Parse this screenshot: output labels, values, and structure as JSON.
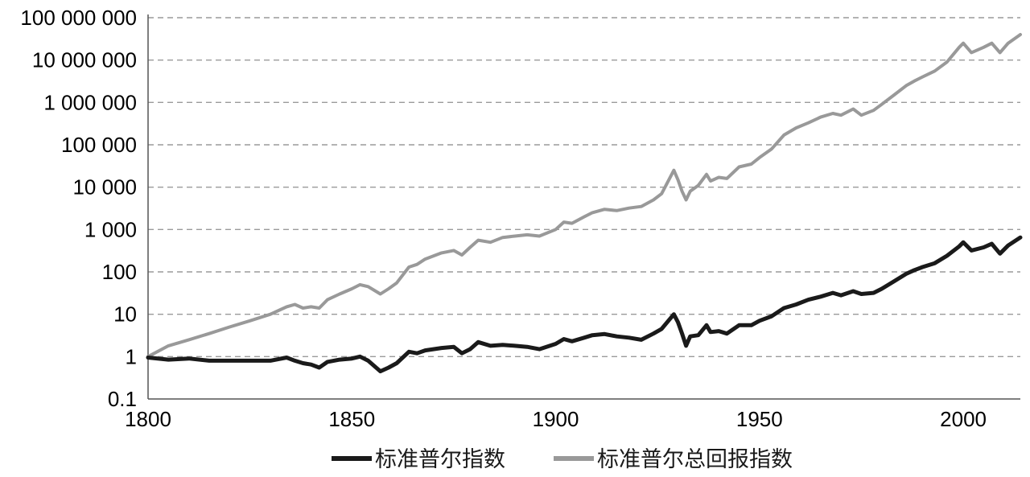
{
  "chart_data": {
    "type": "line",
    "title": "",
    "xlabel": "",
    "ylabel": "",
    "x_scale": "linear",
    "y_scale": "log",
    "xlim": [
      1800,
      2014
    ],
    "ylim": [
      0.1,
      100000000
    ],
    "x_ticks": [
      1800,
      1850,
      1900,
      1950,
      2000
    ],
    "x_tick_labels": [
      "1800",
      "1850",
      "1900",
      "1950",
      "2000"
    ],
    "y_ticks": [
      0.1,
      1,
      10,
      100,
      1000,
      10000,
      100000,
      1000000,
      10000000,
      100000000
    ],
    "y_tick_labels": [
      "0.1",
      "1",
      "10",
      "100",
      "1 000",
      "10 000",
      "100 000",
      "1 000 000",
      "10 000 000",
      "100 000 000"
    ],
    "grid": "horizontal dashed",
    "legend_position": "bottom",
    "series": [
      {
        "name": "标准普尔指数",
        "color": "#1a1a1a",
        "x": [
          1800,
          1805,
          1810,
          1815,
          1820,
          1825,
          1830,
          1834,
          1836,
          1838,
          1840,
          1842,
          1844,
          1847,
          1850,
          1852,
          1854,
          1857,
          1859,
          1861,
          1864,
          1866,
          1868,
          1872,
          1875,
          1877,
          1879,
          1881,
          1884,
          1887,
          1890,
          1893,
          1896,
          1900,
          1902,
          1904,
          1907,
          1909,
          1912,
          1915,
          1918,
          1921,
          1924,
          1926,
          1929,
          1930,
          1931,
          1932,
          1933,
          1935,
          1937,
          1938,
          1940,
          1942,
          1945,
          1948,
          1950,
          1953,
          1956,
          1959,
          1962,
          1965,
          1968,
          1970,
          1973,
          1975,
          1978,
          1980,
          1983,
          1986,
          1988,
          1990,
          1993,
          1996,
          1999,
          2000,
          2002,
          2005,
          2007,
          2009,
          2011,
          2014
        ],
        "y": [
          0.95,
          0.85,
          0.9,
          0.8,
          0.8,
          0.8,
          0.8,
          0.95,
          0.8,
          0.7,
          0.65,
          0.55,
          0.75,
          0.85,
          0.9,
          1.0,
          0.8,
          0.45,
          0.55,
          0.7,
          1.3,
          1.2,
          1.4,
          1.6,
          1.7,
          1.2,
          1.5,
          2.2,
          1.8,
          1.9,
          1.8,
          1.7,
          1.5,
          2.0,
          2.6,
          2.3,
          2.8,
          3.2,
          3.4,
          3.0,
          2.8,
          2.5,
          3.5,
          4.5,
          10.0,
          6.5,
          3.5,
          1.8,
          3.0,
          3.2,
          5.5,
          3.8,
          4.0,
          3.5,
          5.5,
          5.5,
          7.0,
          9.0,
          14.0,
          17.0,
          22.0,
          26.0,
          32.0,
          28.0,
          35.0,
          30.0,
          32.0,
          40.0,
          60.0,
          90.0,
          110.0,
          130.0,
          160.0,
          240.0,
          400.0,
          500.0,
          320.0,
          380.0,
          460.0,
          270.0,
          420.0,
          650.0
        ]
      },
      {
        "name": "标准普尔总回报指数",
        "color": "#999999",
        "x": [
          1800,
          1805,
          1810,
          1815,
          1820,
          1825,
          1830,
          1834,
          1836,
          1838,
          1840,
          1842,
          1844,
          1847,
          1850,
          1852,
          1854,
          1857,
          1859,
          1861,
          1864,
          1866,
          1868,
          1872,
          1875,
          1877,
          1879,
          1881,
          1884,
          1887,
          1890,
          1893,
          1896,
          1900,
          1902,
          1904,
          1907,
          1909,
          1912,
          1915,
          1918,
          1921,
          1924,
          1926,
          1929,
          1930,
          1931,
          1932,
          1933,
          1935,
          1937,
          1938,
          1940,
          1942,
          1945,
          1948,
          1950,
          1953,
          1956,
          1959,
          1962,
          1965,
          1968,
          1970,
          1973,
          1975,
          1978,
          1980,
          1983,
          1986,
          1988,
          1990,
          1993,
          1996,
          1999,
          2000,
          2002,
          2005,
          2007,
          2009,
          2011,
          2014
        ],
        "y": [
          1.0,
          1.8,
          2.5,
          3.5,
          5.0,
          7.0,
          10.0,
          15.0,
          17.0,
          14.0,
          15.0,
          14.0,
          22.0,
          30.0,
          40.0,
          50.0,
          45.0,
          30.0,
          40.0,
          55.0,
          130.0,
          150.0,
          200.0,
          280.0,
          320.0,
          250.0,
          380.0,
          560.0,
          500.0,
          650.0,
          700.0,
          750.0,
          700.0,
          1000.0,
          1500.0,
          1400.0,
          2000.0,
          2500.0,
          3000.0,
          2800.0,
          3200.0,
          3500.0,
          5000.0,
          7000.0,
          25000.0,
          15000.0,
          8000.0,
          5000.0,
          8000.0,
          11000.0,
          20000.0,
          14000.0,
          17000.0,
          16000.0,
          30000.0,
          35000.0,
          50000.0,
          80000.0,
          170000.0,
          250000.0,
          330000.0,
          450000.0,
          550000.0,
          500000.0,
          700000.0,
          500000.0,
          650000.0,
          900000.0,
          1500000.0,
          2500000.0,
          3200000.0,
          4000000.0,
          5500000.0,
          9000000.0,
          20000000.0,
          25000000.0,
          15000000.0,
          20000000.0,
          25000000.0,
          15000000.0,
          25000000.0,
          40000000.0
        ]
      }
    ]
  }
}
